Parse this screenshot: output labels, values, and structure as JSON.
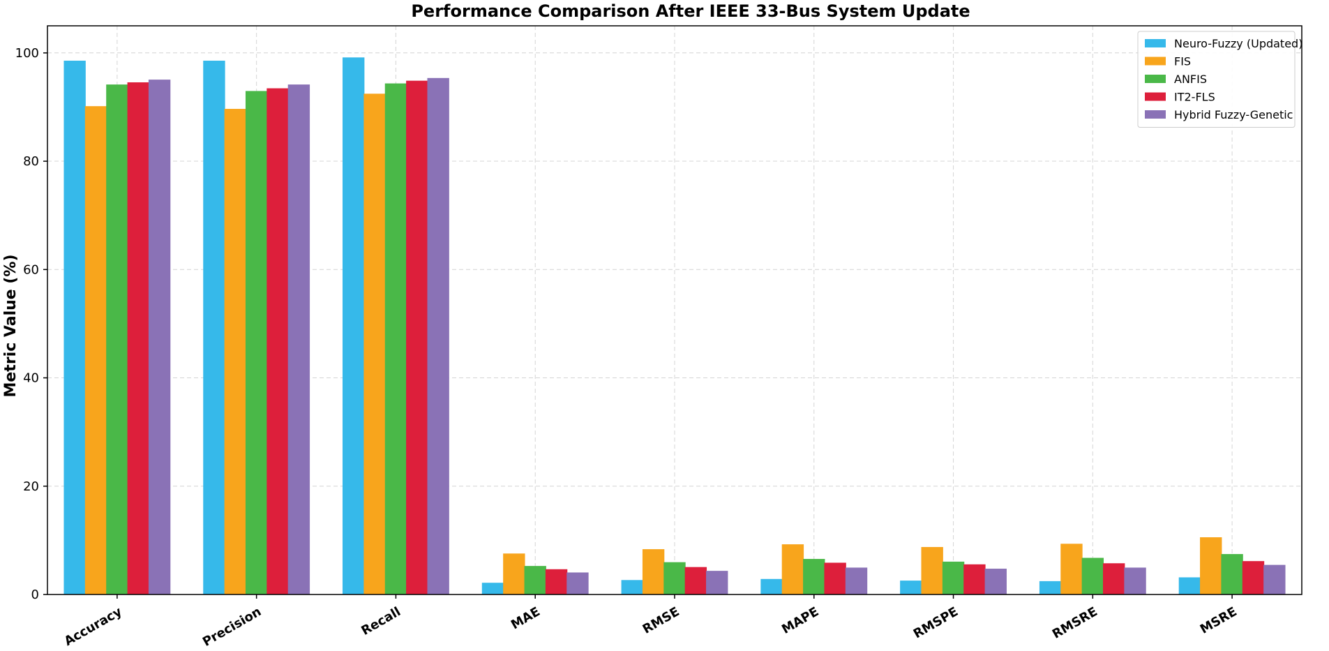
{
  "chart_data": {
    "type": "bar",
    "title": "Performance Comparison After IEEE 33-Bus System Update",
    "xlabel": "",
    "ylabel": "Metric Value (%)",
    "ylim": [
      0,
      105
    ],
    "yticks": [
      0,
      20,
      40,
      60,
      80,
      100
    ],
    "grid": true,
    "legend_position": "top-right",
    "categories": [
      "Accuracy",
      "Precision",
      "Recall",
      "MAE",
      "RMSE",
      "MAPE",
      "RMSPE",
      "RMSRE",
      "MSRE"
    ],
    "series": [
      {
        "name": "Neuro-Fuzzy (Updated)",
        "color": "#36b9ea",
        "values": [
          98.5,
          98.5,
          99.1,
          2.1,
          2.6,
          2.8,
          2.5,
          2.4,
          3.1
        ]
      },
      {
        "name": "FIS",
        "color": "#f8a51c",
        "values": [
          90.1,
          89.6,
          92.4,
          7.5,
          8.3,
          9.2,
          8.7,
          9.3,
          10.5
        ]
      },
      {
        "name": "ANFIS",
        "color": "#4ab848",
        "values": [
          94.1,
          92.9,
          94.3,
          5.2,
          5.9,
          6.5,
          6.0,
          6.7,
          7.4
        ]
      },
      {
        "name": "IT2-FLS",
        "color": "#dd1f3b",
        "values": [
          94.5,
          93.4,
          94.8,
          4.6,
          5.0,
          5.8,
          5.5,
          5.7,
          6.1
        ]
      },
      {
        "name": "Hybrid Fuzzy-Genetic",
        "color": "#8a72b6",
        "values": [
          95.0,
          94.1,
          95.3,
          4.0,
          4.3,
          4.9,
          4.7,
          4.9,
          5.4
        ]
      }
    ]
  }
}
